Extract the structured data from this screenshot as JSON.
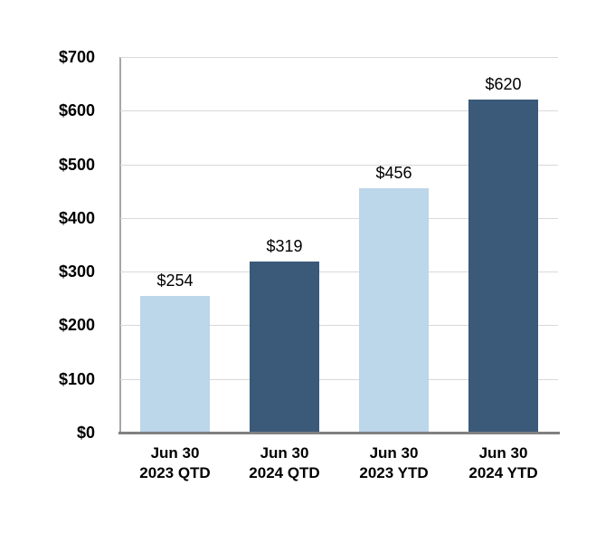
{
  "chart_data": {
    "type": "bar",
    "categories": [
      [
        "Jun 30",
        "2023 QTD"
      ],
      [
        "Jun 30",
        "2024 QTD"
      ],
      [
        "Jun 30",
        "2023 YTD"
      ],
      [
        "Jun 30",
        "2024 YTD"
      ]
    ],
    "values": [
      254,
      319,
      456,
      620
    ],
    "data_labels": [
      "$254",
      "$319",
      "$456",
      "$620"
    ],
    "bar_colors": [
      "#BCD6EA",
      "#3B5978",
      "#BCD6EA",
      "#3B5978"
    ],
    "title": "",
    "xlabel": "",
    "ylabel": "",
    "ylim": [
      0,
      700
    ],
    "ytick_interval": 100,
    "ytick_labels": [
      "$0",
      "$100",
      "$200",
      "$300",
      "$400",
      "$500",
      "$600",
      "$700"
    ],
    "grid": true,
    "legend_position": "none",
    "colors": {
      "light_blue": "#BCD6EA",
      "dark_blue": "#3B5978",
      "gridline": "#D9D9D9",
      "y_axis_line": "#A6A6A6",
      "x_axis_line": "#808080",
      "text": "#000000",
      "background": "#FFFFFF"
    }
  }
}
